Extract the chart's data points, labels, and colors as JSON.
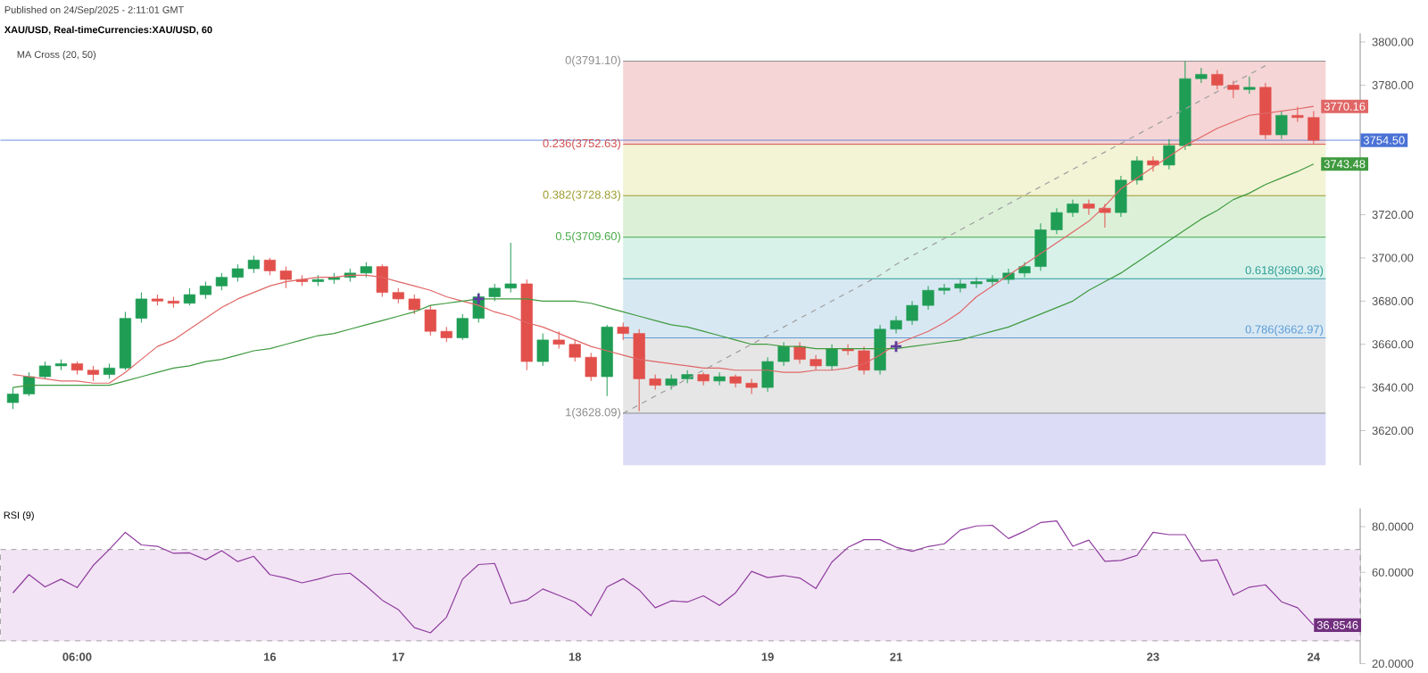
{
  "chart_data": [
    {
      "type": "candlestick",
      "title": "XAU/USD, Real-timeCurrencies:XAU/USD, 60",
      "subtitle": "MA Cross (20, 50)",
      "annotations": [
        "Published on 24/Sep/2025 - 2:11:01 GMT"
      ],
      "categories": [
        null,
        null,
        null,
        null,
        null,
        null,
        null,
        null,
        null,
        null,
        null,
        null,
        null,
        null,
        null,
        null,
        null,
        null,
        null,
        null,
        null,
        null,
        null,
        null,
        null,
        null,
        null,
        null,
        null,
        null,
        null,
        null,
        null,
        null,
        null,
        null,
        null,
        null,
        null,
        null,
        null,
        null,
        null,
        null,
        null,
        null,
        null,
        null,
        null,
        null,
        null,
        null,
        null,
        null,
        null,
        null,
        null,
        null,
        null,
        null,
        null,
        null,
        null,
        null,
        null,
        null,
        null,
        null,
        null,
        null,
        null,
        null,
        null,
        null,
        null,
        null,
        null,
        null,
        null,
        null,
        null,
        null
      ],
      "ohlc": [
        [
          3633,
          3640,
          3630,
          3637
        ],
        [
          3637,
          3647,
          3636,
          3645
        ],
        [
          3645,
          3652,
          3644,
          3650
        ],
        [
          3650,
          3653,
          3648,
          3651
        ],
        [
          3651,
          3652,
          3646,
          3648
        ],
        [
          3648,
          3650,
          3643,
          3646
        ],
        [
          3646,
          3651,
          3644,
          3649
        ],
        [
          3649,
          3675,
          3648,
          3672
        ],
        [
          3672,
          3684,
          3670,
          3681
        ],
        [
          3681,
          3683,
          3678,
          3680
        ],
        [
          3680,
          3682,
          3677,
          3679
        ],
        [
          3679,
          3686,
          3678,
          3683
        ],
        [
          3683,
          3689,
          3681,
          3687
        ],
        [
          3687,
          3693,
          3685,
          3691
        ],
        [
          3691,
          3697,
          3689,
          3695
        ],
        [
          3695,
          3701,
          3693,
          3699
        ],
        [
          3699,
          3700,
          3692,
          3694
        ],
        [
          3694,
          3696,
          3686,
          3690
        ],
        [
          3690,
          3692,
          3687,
          3689
        ],
        [
          3689,
          3692,
          3687,
          3690
        ],
        [
          3690,
          3693,
          3688,
          3691
        ],
        [
          3691,
          3695,
          3689,
          3693
        ],
        [
          3693,
          3698,
          3691,
          3696
        ],
        [
          3696,
          3697,
          3682,
          3684
        ],
        [
          3684,
          3686,
          3679,
          3681
        ],
        [
          3681,
          3683,
          3674,
          3676
        ],
        [
          3676,
          3678,
          3664,
          3666
        ],
        [
          3666,
          3668,
          3661,
          3663
        ],
        [
          3663,
          3674,
          3662,
          3672
        ],
        [
          3672,
          3684,
          3670,
          3682
        ],
        [
          3682,
          3688,
          3680,
          3686
        ],
        [
          3686,
          3707,
          3684,
          3688
        ],
        [
          3688,
          3690,
          3648,
          3652
        ],
        [
          3652,
          3665,
          3650,
          3662
        ],
        [
          3662,
          3666,
          3658,
          3660
        ],
        [
          3660,
          3662,
          3652,
          3654
        ],
        [
          3654,
          3656,
          3643,
          3645
        ],
        [
          3645,
          3669,
          3636,
          3668
        ],
        [
          3668,
          3670,
          3662,
          3665
        ],
        [
          3665,
          3667,
          3629,
          3644
        ],
        [
          3644,
          3646,
          3639,
          3641
        ],
        [
          3641,
          3646,
          3639,
          3644
        ],
        [
          3644,
          3648,
          3642,
          3646
        ],
        [
          3646,
          3647,
          3641,
          3643
        ],
        [
          3643,
          3647,
          3641,
          3645
        ],
        [
          3645,
          3646,
          3640,
          3642
        ],
        [
          3642,
          3644,
          3637,
          3640
        ],
        [
          3640,
          3654,
          3638,
          3652
        ],
        [
          3652,
          3661,
          3650,
          3659
        ],
        [
          3659,
          3661,
          3651,
          3653
        ],
        [
          3653,
          3655,
          3648,
          3650
        ],
        [
          3650,
          3660,
          3648,
          3658
        ],
        [
          3658,
          3660,
          3655,
          3657
        ],
        [
          3657,
          3659,
          3646,
          3648
        ],
        [
          3648,
          3669,
          3646,
          3667
        ],
        [
          3667,
          3673,
          3665,
          3671
        ],
        [
          3671,
          3680,
          3669,
          3678
        ],
        [
          3678,
          3687,
          3676,
          3685
        ],
        [
          3685,
          3688,
          3683,
          3686
        ],
        [
          3686,
          3690,
          3684,
          3688
        ],
        [
          3688,
          3691,
          3686,
          3689
        ],
        [
          3689,
          3692,
          3687,
          3690
        ],
        [
          3690,
          3695,
          3688,
          3693
        ],
        [
          3693,
          3698,
          3691,
          3696
        ],
        [
          3696,
          3716,
          3694,
          3713
        ],
        [
          3713,
          3723,
          3711,
          3721
        ],
        [
          3721,
          3727,
          3719,
          3725
        ],
        [
          3725,
          3727,
          3720,
          3723
        ],
        [
          3723,
          3725,
          3714,
          3721
        ],
        [
          3721,
          3738,
          3719,
          3736
        ],
        [
          3736,
          3747,
          3734,
          3745
        ],
        [
          3745,
          3747,
          3740,
          3743
        ],
        [
          3743,
          3755,
          3741,
          3752
        ],
        [
          3752,
          3791.1,
          3750,
          3783
        ],
        [
          3783,
          3788,
          3781,
          3785
        ],
        [
          3785,
          3787,
          3778,
          3780
        ],
        [
          3780,
          3782,
          3774,
          3778
        ],
        [
          3778,
          3784,
          3776,
          3779
        ],
        [
          3779,
          3781,
          3755,
          3757
        ],
        [
          3757,
          3768,
          3755,
          3766
        ],
        [
          3766,
          3770,
          3763,
          3765
        ],
        [
          3765,
          3768,
          3753,
          3754.5
        ]
      ],
      "series": [
        {
          "type": "line",
          "color": "#e06666",
          "values": [
            3646,
            3645,
            3644,
            3643,
            3643,
            3642,
            3642,
            3647,
            3653,
            3659,
            3662,
            3667,
            3672,
            3677,
            3681,
            3684,
            3687,
            3689,
            3690,
            3691,
            3691,
            3692,
            3692,
            3691,
            3689,
            3687,
            3685,
            3682,
            3680,
            3678,
            3675,
            3673,
            3670,
            3668,
            3665,
            3662,
            3659,
            3657,
            3655,
            3653,
            3652,
            3651,
            3650,
            3649,
            3649,
            3648,
            3648,
            3648,
            3647,
            3647,
            3648,
            3648,
            3649,
            3651,
            3655,
            3660,
            3663,
            3666,
            3670,
            3675,
            3682,
            3687,
            3692,
            3697,
            3702,
            3707,
            3712,
            3717,
            3724,
            3732,
            3737,
            3742,
            3747,
            3752,
            3756,
            3760,
            3763,
            3766,
            3767,
            3768,
            3769,
            3770.16
          ],
          "value_labels": [
            null,
            null,
            null,
            null,
            null,
            null,
            null,
            null,
            null,
            null,
            null,
            null,
            null,
            null,
            null,
            null,
            null,
            null,
            null,
            null,
            null,
            null,
            null,
            null,
            null,
            null,
            null,
            null,
            null,
            null,
            null,
            null,
            null,
            null,
            null,
            null,
            null,
            null,
            null,
            null,
            null,
            null,
            null,
            null,
            null,
            null,
            null,
            null,
            null,
            null,
            null,
            null,
            null,
            null,
            null,
            null,
            null,
            null,
            null,
            null,
            null,
            null,
            null,
            null,
            null,
            null,
            null,
            null,
            null,
            null,
            null,
            null,
            null,
            null,
            null,
            null,
            null,
            null,
            null,
            null,
            null,
            "3770.16"
          ]
        },
        {
          "type": "line",
          "color": "#3f9a3f",
          "values": [
            3640,
            3641,
            3641,
            3641,
            3641,
            3641,
            3641,
            3643,
            3645,
            3647,
            3649,
            3650,
            3652,
            3653,
            3655,
            3657,
            3658,
            3660,
            3662,
            3664,
            3665,
            3667,
            3669,
            3671,
            3673,
            3675,
            3678,
            3679,
            3680,
            3681,
            3681,
            3681,
            3681,
            3680,
            3680,
            3680,
            3679,
            3677,
            3675,
            3673,
            3671,
            3669,
            3668,
            3666,
            3664,
            3662,
            3660,
            3660,
            3659,
            3659,
            3658,
            3658,
            3658,
            3658,
            3658,
            3658,
            3659,
            3660,
            3661,
            3662,
            3664,
            3666,
            3668,
            3671,
            3674,
            3677,
            3680,
            3685,
            3689,
            3693,
            3698,
            3703,
            3708,
            3713,
            3718,
            3722,
            3727,
            3730,
            3734,
            3737,
            3740,
            3743.48
          ],
          "value_labels": [
            null,
            null,
            null,
            null,
            null,
            null,
            null,
            null,
            null,
            null,
            null,
            null,
            null,
            null,
            null,
            null,
            null,
            null,
            null,
            null,
            null,
            null,
            null,
            null,
            null,
            null,
            null,
            null,
            null,
            null,
            null,
            null,
            null,
            null,
            null,
            null,
            null,
            null,
            null,
            null,
            null,
            null,
            null,
            null,
            null,
            null,
            null,
            null,
            null,
            null,
            null,
            null,
            null,
            null,
            null,
            null,
            null,
            null,
            null,
            null,
            null,
            null,
            null,
            null,
            null,
            null,
            null,
            null,
            null,
            null,
            null,
            null,
            null,
            null,
            null,
            null,
            null,
            null,
            null,
            null,
            null,
            "3743.48"
          ]
        },
        {
          "type": "line",
          "color": "#9e9e9e",
          "line_style": "dashed",
          "values": [
            null,
            null,
            null,
            null,
            null,
            null,
            null,
            null,
            null,
            null,
            null,
            null,
            null,
            null,
            null,
            null,
            null,
            null,
            null,
            null,
            null,
            null,
            null,
            null,
            null,
            null,
            null,
            null,
            null,
            null,
            null,
            null,
            null,
            null,
            null,
            null,
            null,
            null,
            3628,
            3632,
            3636,
            3640,
            3644,
            3648,
            3652,
            3656,
            3660,
            3664,
            3668,
            3672,
            3676,
            3680,
            3684,
            3688,
            3692,
            3697,
            3701,
            3705,
            3709,
            3713,
            3717,
            3721,
            3725,
            3729,
            3733,
            3737,
            3741,
            3745,
            3749,
            3753,
            3757,
            3761,
            3765,
            3769,
            3773,
            3777,
            3781,
            3785,
            3789,
            null,
            null,
            null
          ]
        },
        {
          "type": "scatter",
          "marker": "cross",
          "color": "#5c3d9e",
          "values": [
            null,
            null,
            null,
            null,
            null,
            null,
            null,
            null,
            null,
            null,
            null,
            null,
            null,
            null,
            null,
            null,
            null,
            null,
            null,
            null,
            null,
            null,
            null,
            null,
            null,
            null,
            null,
            null,
            null,
            3681,
            null,
            null,
            null,
            null,
            null,
            null,
            null,
            null,
            null,
            null,
            null,
            null,
            null,
            null,
            null,
            null,
            null,
            null,
            null,
            null,
            null,
            null,
            null,
            null,
            null,
            3659,
            null,
            null,
            null,
            null,
            null,
            null,
            null,
            null,
            null,
            null,
            null,
            null,
            null,
            null,
            null,
            null,
            null,
            null,
            null,
            null,
            null,
            null,
            null,
            null,
            null,
            null
          ]
        }
      ],
      "bands": [
        {
          "axis": "y",
          "from": 3752.63,
          "to": 3791.1,
          "color": "#f5d5d5"
        },
        {
          "axis": "y",
          "from": 3728.83,
          "to": 3752.63,
          "color": "#f3f3d6"
        },
        {
          "axis": "y",
          "from": 3709.6,
          "to": 3728.83,
          "color": "#dcf0d8"
        },
        {
          "axis": "y",
          "from": 3690.36,
          "to": 3709.6,
          "color": "#d8f2ea"
        },
        {
          "axis": "y",
          "from": 3662.97,
          "to": 3690.36,
          "color": "#d8e8f3"
        },
        {
          "axis": "y",
          "from": 3628.09,
          "to": 3662.97,
          "color": "#e6e6e6"
        },
        {
          "axis": "y",
          "from": 3604,
          "to": 3628.09,
          "color": "#dcdcf6"
        }
      ],
      "ref_lines": [
        {
          "axis": "y",
          "value": 3754.5,
          "label": "3754.50",
          "color": "#4a72d6"
        },
        {
          "axis": "y",
          "value": 3791.1,
          "label": "0(3791.10)",
          "color": "#8c8c8c"
        },
        {
          "axis": "y",
          "value": 3752.63,
          "label": "0.236(3752.63)",
          "color": "#d0504e"
        },
        {
          "axis": "y",
          "value": 3728.83,
          "label": "0.382(3728.83)",
          "color": "#9a9a2a"
        },
        {
          "axis": "y",
          "value": 3709.6,
          "label": "0.5(3709.60)",
          "color": "#45a845"
        },
        {
          "axis": "y",
          "value": 3690.36,
          "label": "0.618(3690.36)",
          "color": "#2a9d94"
        },
        {
          "axis": "y",
          "value": 3662.97,
          "label": "0.786(3662.97)",
          "color": "#5b9bd5"
        },
        {
          "axis": "y",
          "value": 3628.09,
          "label": "1(3628.09)",
          "color": "#8c8c8c"
        }
      ],
      "ylim": [
        3604,
        3804
      ],
      "yticks": [
        {
          "value": 3620,
          "label": "3620.00"
        },
        {
          "value": 3640,
          "label": "3640.00"
        },
        {
          "value": 3660,
          "label": "3660.00"
        },
        {
          "value": 3680,
          "label": "3680.00"
        },
        {
          "value": 3700,
          "label": "3700.00"
        },
        {
          "value": 3720,
          "label": "3720.00"
        },
        {
          "value": 3780,
          "label": "3780.00"
        },
        {
          "value": 3800,
          "label": "3800.00"
        }
      ],
      "tick_labels": "y"
    },
    {
      "type": "line",
      "title": "RSI (9)",
      "categories": [
        null,
        null,
        null,
        null,
        "06:00",
        null,
        null,
        null,
        null,
        null,
        null,
        null,
        null,
        null,
        null,
        null,
        "16",
        null,
        null,
        null,
        null,
        null,
        null,
        null,
        "17",
        null,
        null,
        null,
        null,
        null,
        null,
        null,
        null,
        null,
        null,
        "18",
        null,
        null,
        null,
        null,
        null,
        null,
        null,
        null,
        null,
        null,
        null,
        "19",
        null,
        null,
        null,
        null,
        null,
        null,
        null,
        "21",
        null,
        null,
        null,
        null,
        null,
        null,
        null,
        null,
        null,
        null,
        null,
        null,
        null,
        null,
        null,
        "23",
        null,
        null,
        null,
        null,
        null,
        null,
        null,
        null,
        null,
        "24"
      ],
      "series": [
        {
          "color": "#8e3b9e",
          "values": [
            51,
            59,
            53.6,
            57,
            53.3,
            63,
            70,
            77.5,
            72,
            71.4,
            68.3,
            68.5,
            65.5,
            69.5,
            64.7,
            67,
            59,
            57.5,
            55.4,
            57,
            59,
            59.6,
            54,
            47.8,
            43.7,
            35.8,
            33.5,
            40.3,
            57,
            63.4,
            63.9,
            46.3,
            47.9,
            52.7,
            49.9,
            47,
            41,
            53.6,
            57.2,
            52.3,
            44.5,
            47.5,
            47,
            49.7,
            45.5,
            51,
            60.4,
            57.7,
            58.6,
            57.5,
            52.9,
            64.5,
            70.9,
            74.3,
            74.3,
            71,
            69.2,
            71.3,
            72.5,
            78.5,
            80.3,
            80.6,
            74.8,
            78,
            81.8,
            82.5,
            71.4,
            74.1,
            64.8,
            65.2,
            67.4,
            77.5,
            76.5,
            76.5,
            64.9,
            65.5,
            50,
            53.5,
            54.5,
            47.1,
            44.5,
            36.8546
          ]
        }
      ],
      "annotations": [
        {
          "text": "36.8546",
          "x": "24",
          "y": 36.8546
        }
      ],
      "bands": [
        {
          "axis": "y",
          "from": 30,
          "to": 70,
          "color": "#f2e4f4"
        }
      ],
      "ylim": [
        20,
        88
      ],
      "yticks": [
        {
          "value": 20,
          "label": "20.0000"
        },
        {
          "value": 60,
          "label": "60.0000"
        },
        {
          "value": 80,
          "label": "80.0000"
        }
      ]
    }
  ]
}
